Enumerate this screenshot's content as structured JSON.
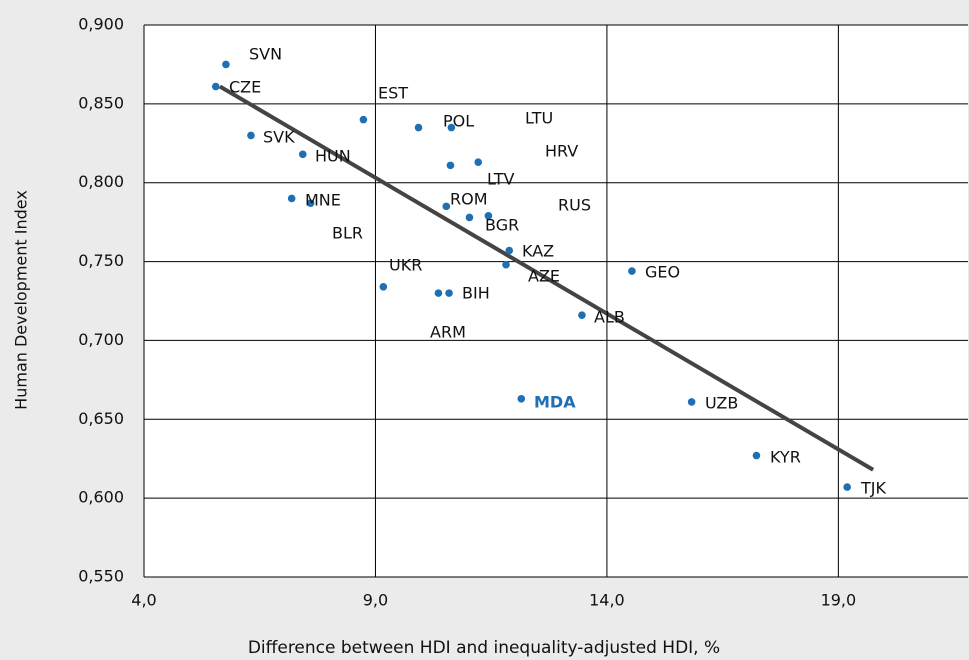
{
  "chart_data": {
    "type": "scatter",
    "x_label": "Difference between HDI and inequality-adjusted HDI, %",
    "y_label": "Human Development Index",
    "xlim": [
      4.0,
      21.8
    ],
    "ylim": [
      0.55,
      0.9
    ],
    "xticks": [
      {
        "value": 4,
        "label": "4,0"
      },
      {
        "value": 9,
        "label": "9,0"
      },
      {
        "value": 14,
        "label": "14,0"
      },
      {
        "value": 19,
        "label": "19,0"
      }
    ],
    "yticks": [
      {
        "value": 0.55,
        "label": "0,550"
      },
      {
        "value": 0.6,
        "label": "0,600"
      },
      {
        "value": 0.65,
        "label": "0,650"
      },
      {
        "value": 0.7,
        "label": "0,700"
      },
      {
        "value": 0.75,
        "label": "0,750"
      },
      {
        "value": 0.8,
        "label": "0,800"
      },
      {
        "value": 0.85,
        "label": "0,850"
      },
      {
        "value": 0.9,
        "label": "0,900"
      }
    ],
    "grid": true,
    "series": [
      {
        "color": "#1f6fb5",
        "x": [
          5.77,
          5.55,
          6.31,
          7.43,
          7.19,
          7.6,
          8.74,
          9.93,
          10.64,
          10.62,
          11.22,
          10.53,
          11.03,
          11.44,
          11.89,
          11.82,
          14.54,
          9.17,
          10.36,
          10.59,
          13.46,
          12.15,
          15.83,
          17.23,
          19.19
        ],
        "values": [
          0.875,
          0.861,
          0.83,
          0.818,
          0.79,
          0.787,
          0.84,
          0.835,
          0.835,
          0.811,
          0.813,
          0.785,
          0.778,
          0.779,
          0.757,
          0.748,
          0.744,
          0.734,
          0.73,
          0.73,
          0.716,
          0.663,
          0.661,
          0.627,
          0.607
        ]
      }
    ],
    "trendline": {
      "color": "#444444",
      "x": [
        5.64,
        19.75
      ],
      "values": [
        0.861,
        0.618
      ]
    },
    "labels": [
      "SVN",
      "CZE",
      "EST",
      "POL",
      "LTU",
      "SVK",
      "HUN",
      "HRV",
      "LTV",
      "MNE",
      "ROM",
      "RUS",
      "BGR",
      "BLR",
      "KAZ",
      "UKR",
      "GEO",
      "AZE",
      "BIH",
      "ALB",
      "ARM",
      "MDA",
      "UZB",
      "KYR",
      "TJK"
    ],
    "highlight": {
      "label": "MDA",
      "color": "#1f6fb5"
    }
  }
}
